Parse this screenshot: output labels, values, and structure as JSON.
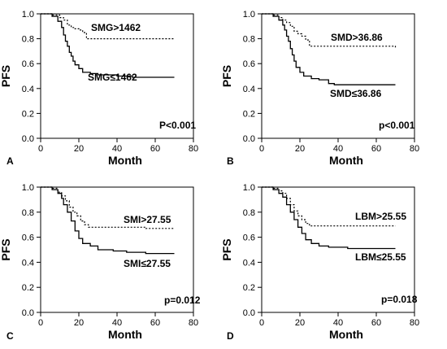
{
  "chart_data": [
    {
      "type": "line",
      "panel_label": "A",
      "xlabel": "Month",
      "ylabel": "PFS",
      "xlim": [
        0,
        80
      ],
      "ylim": [
        0,
        1.0
      ],
      "x_ticks": [
        "0",
        "20",
        "40",
        "60",
        "80"
      ],
      "y_ticks": [
        "0.0",
        "0.2",
        "0.4",
        "0.6",
        "0.8",
        "1.0"
      ],
      "p_value": "P<0.001",
      "grid": false,
      "series": [
        {
          "name": "SMG>1462",
          "style": "dotted",
          "points": [
            [
              0,
              1.0
            ],
            [
              6,
              0.99
            ],
            [
              10,
              0.97
            ],
            [
              12,
              0.95
            ],
            [
              14,
              0.91
            ],
            [
              16,
              0.89
            ],
            [
              18,
              0.88
            ],
            [
              20,
              0.87
            ],
            [
              22,
              0.85
            ],
            [
              24,
              0.8
            ],
            [
              70,
              0.8
            ]
          ]
        },
        {
          "name": "SMG≤1462",
          "style": "solid",
          "points": [
            [
              0,
              1.0
            ],
            [
              6,
              0.98
            ],
            [
              9,
              0.94
            ],
            [
              11,
              0.89
            ],
            [
              12,
              0.83
            ],
            [
              13,
              0.78
            ],
            [
              14,
              0.74
            ],
            [
              15,
              0.69
            ],
            [
              16,
              0.66
            ],
            [
              17,
              0.62
            ],
            [
              18,
              0.59
            ],
            [
              20,
              0.56
            ],
            [
              22,
              0.53
            ],
            [
              26,
              0.52
            ],
            [
              30,
              0.51
            ],
            [
              40,
              0.5
            ],
            [
              48,
              0.49
            ],
            [
              70,
              0.49
            ]
          ]
        }
      ]
    },
    {
      "type": "line",
      "panel_label": "B",
      "xlabel": "Month",
      "ylabel": "PFS",
      "xlim": [
        0,
        80
      ],
      "ylim": [
        0,
        1.0
      ],
      "x_ticks": [
        "0",
        "20",
        "40",
        "60",
        "80"
      ],
      "y_ticks": [
        "0.0",
        "0.2",
        "0.4",
        "0.6",
        "0.8",
        "1.0"
      ],
      "p_value": "p<0.001",
      "grid": false,
      "series": [
        {
          "name": "SMD>36.86",
          "style": "dotted",
          "points": [
            [
              0,
              1.0
            ],
            [
              6,
              0.99
            ],
            [
              9,
              0.97
            ],
            [
              11,
              0.95
            ],
            [
              13,
              0.93
            ],
            [
              15,
              0.9
            ],
            [
              17,
              0.86
            ],
            [
              19,
              0.84
            ],
            [
              21,
              0.82
            ],
            [
              23,
              0.79
            ],
            [
              25,
              0.74
            ],
            [
              70,
              0.73
            ]
          ]
        },
        {
          "name": "SMD≤36.86",
          "style": "solid",
          "points": [
            [
              0,
              1.0
            ],
            [
              6,
              0.98
            ],
            [
              9,
              0.95
            ],
            [
              11,
              0.91
            ],
            [
              12,
              0.87
            ],
            [
              13,
              0.82
            ],
            [
              14,
              0.78
            ],
            [
              15,
              0.72
            ],
            [
              16,
              0.67
            ],
            [
              17,
              0.62
            ],
            [
              18,
              0.57
            ],
            [
              20,
              0.53
            ],
            [
              22,
              0.5
            ],
            [
              26,
              0.48
            ],
            [
              30,
              0.47
            ],
            [
              35,
              0.44
            ],
            [
              38,
              0.43
            ],
            [
              70,
              0.43
            ]
          ]
        }
      ]
    },
    {
      "type": "line",
      "panel_label": "C",
      "xlabel": "Month",
      "ylabel": "PFS",
      "xlim": [
        0,
        80
      ],
      "ylim": [
        0,
        1.0
      ],
      "x_ticks": [
        "0",
        "20",
        "40",
        "60",
        "80"
      ],
      "y_ticks": [
        "0.0",
        "0.2",
        "0.4",
        "0.6",
        "0.8",
        "1.0"
      ],
      "p_value": "p=0.012",
      "grid": false,
      "series": [
        {
          "name": "SMI>27.55",
          "style": "dotted",
          "points": [
            [
              0,
              1.0
            ],
            [
              6,
              0.99
            ],
            [
              9,
              0.96
            ],
            [
              11,
              0.93
            ],
            [
              13,
              0.89
            ],
            [
              15,
              0.84
            ],
            [
              17,
              0.8
            ],
            [
              19,
              0.77
            ],
            [
              21,
              0.73
            ],
            [
              23,
              0.7
            ],
            [
              25,
              0.68
            ],
            [
              40,
              0.68
            ],
            [
              55,
              0.67
            ],
            [
              70,
              0.67
            ]
          ]
        },
        {
          "name": "SMI≤27.55",
          "style": "solid",
          "points": [
            [
              0,
              1.0
            ],
            [
              6,
              0.98
            ],
            [
              9,
              0.95
            ],
            [
              11,
              0.91
            ],
            [
              12,
              0.86
            ],
            [
              14,
              0.8
            ],
            [
              16,
              0.73
            ],
            [
              18,
              0.65
            ],
            [
              20,
              0.59
            ],
            [
              22,
              0.55
            ],
            [
              26,
              0.53
            ],
            [
              30,
              0.5
            ],
            [
              38,
              0.49
            ],
            [
              45,
              0.48
            ],
            [
              55,
              0.47
            ],
            [
              70,
              0.47
            ]
          ]
        }
      ]
    },
    {
      "type": "line",
      "panel_label": "D",
      "xlabel": "Month",
      "ylabel": "PFS",
      "xlim": [
        0,
        80
      ],
      "ylim": [
        0,
        1.0
      ],
      "x_ticks": [
        "0",
        "20",
        "40",
        "60",
        "80"
      ],
      "y_ticks": [
        "0.0",
        "0.2",
        "0.4",
        "0.6",
        "0.8",
        "1.0"
      ],
      "p_value": "p=0.018",
      "grid": false,
      "series": [
        {
          "name": "LBM>25.55",
          "style": "dotted",
          "points": [
            [
              0,
              1.0
            ],
            [
              6,
              0.99
            ],
            [
              9,
              0.97
            ],
            [
              11,
              0.95
            ],
            [
              13,
              0.91
            ],
            [
              15,
              0.86
            ],
            [
              17,
              0.81
            ],
            [
              19,
              0.77
            ],
            [
              21,
              0.74
            ],
            [
              23,
              0.71
            ],
            [
              25,
              0.69
            ],
            [
              70,
              0.69
            ]
          ]
        },
        {
          "name": "LBM≤25.55",
          "style": "solid",
          "points": [
            [
              0,
              1.0
            ],
            [
              6,
              0.98
            ],
            [
              9,
              0.95
            ],
            [
              11,
              0.92
            ],
            [
              13,
              0.86
            ],
            [
              15,
              0.8
            ],
            [
              17,
              0.74
            ],
            [
              19,
              0.68
            ],
            [
              21,
              0.63
            ],
            [
              23,
              0.58
            ],
            [
              26,
              0.55
            ],
            [
              30,
              0.53
            ],
            [
              35,
              0.52
            ],
            [
              45,
              0.51
            ],
            [
              70,
              0.51
            ]
          ]
        }
      ]
    }
  ]
}
